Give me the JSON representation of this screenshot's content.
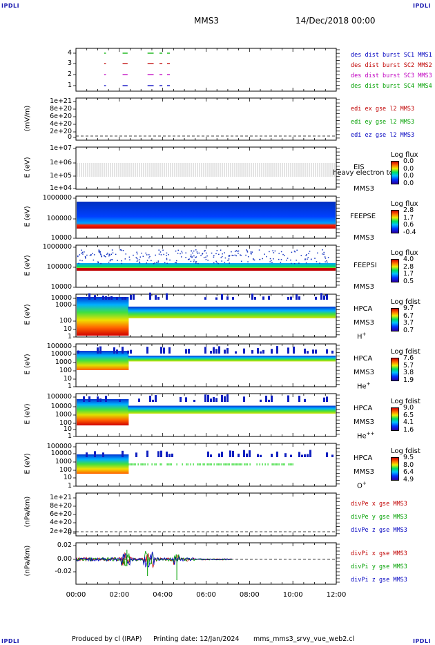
{
  "corners": {
    "tl": "IPDLI",
    "tr": "IPDLI",
    "bl": "IPDLI",
    "br": "IPDLI"
  },
  "header": {
    "title": "MMS3",
    "date": "14/Dec/2018 00:00"
  },
  "footer": {
    "produced_by": "Produced by cl (IRAP)",
    "printing_date": "Printing date: 12/Jan/2024",
    "file": "mms_mms3_srvy_vue_web2.cl"
  },
  "x_ticks": [
    "00:00",
    "02:00",
    "04:00",
    "06:00",
    "08:00",
    "10:00",
    "12:00"
  ],
  "chart_data": [
    {
      "type": "scatter",
      "id": "burst",
      "yticks": [
        "4",
        "3",
        "2",
        "1"
      ],
      "legend": [
        {
          "text": "des dist burst SC1 MMS1",
          "color": "#0000c0"
        },
        {
          "text": "des dist burst SC2 MMS2",
          "color": "#c00000"
        },
        {
          "text": "des dist burst SC3 MMS3",
          "color": "#c000c0"
        },
        {
          "text": "des dist burst SC4 MMS4",
          "color": "#00a000"
        }
      ],
      "series": [
        {
          "level": 4,
          "color": "#00b000",
          "x_hours": [
            [
              1.3,
              1.35
            ],
            [
              2.15,
              2.35
            ],
            [
              3.3,
              3.55
            ],
            [
              3.85,
              3.95
            ],
            [
              4.2,
              4.3
            ]
          ]
        },
        {
          "level": 3,
          "color": "#c00000",
          "x_hours": [
            [
              1.3,
              1.35
            ],
            [
              2.15,
              2.35
            ],
            [
              3.3,
              3.55
            ],
            [
              3.85,
              3.95
            ],
            [
              4.2,
              4.3
            ]
          ]
        },
        {
          "level": 2,
          "color": "#c000c0",
          "x_hours": [
            [
              1.3,
              1.35
            ],
            [
              2.15,
              2.35
            ],
            [
              3.3,
              3.55
            ],
            [
              3.85,
              3.95
            ],
            [
              4.2,
              4.3
            ]
          ]
        },
        {
          "level": 1,
          "color": "#0000c0",
          "x_hours": [
            [
              1.3,
              1.35
            ],
            [
              2.15,
              2.35
            ],
            [
              3.3,
              3.55
            ],
            [
              3.85,
              3.95
            ],
            [
              4.2,
              4.3
            ]
          ]
        }
      ]
    },
    {
      "type": "line",
      "id": "edi",
      "ylabel": "(mV/m)",
      "yticks": [
        "1e+21",
        "8e+20",
        "6e+20",
        "4e+20",
        "2e+20",
        "0"
      ],
      "legend": [
        {
          "text": "edi ex gse l2 MMS3",
          "color": "#c00000"
        },
        {
          "text": "edi ey gse l2 MMS3",
          "color": "#00a000"
        },
        {
          "text": "edi ez gse l2 MMS3",
          "color": "#0000c0"
        }
      ]
    },
    {
      "type": "heatmap",
      "id": "eis",
      "ylabel": "E (eV)",
      "yticks": [
        "1e+07",
        "1e+06",
        "1e+05",
        "1e+04"
      ],
      "inst": [
        "EIS",
        "MMS3"
      ],
      "overlay": "heavy electron to",
      "cb_title": "Log flux",
      "cb_ticks": [
        "0.0",
        "0.0",
        "0.0",
        "0.0"
      ]
    },
    {
      "type": "heatmap",
      "id": "feepse",
      "ylabel": "E (eV)",
      "yticks": [
        "1000000",
        "100000",
        "10000"
      ],
      "inst": [
        "FEEPSE",
        "MMS3"
      ],
      "cb_title": "Log flux",
      "cb_ticks": [
        "2.8",
        "1.7",
        "0.6",
        "-0.4"
      ]
    },
    {
      "type": "heatmap",
      "id": "feepsi",
      "ylabel": "E (eV)",
      "yticks": [
        "1000000",
        "100000",
        "10000"
      ],
      "inst": [
        "FEEPSI",
        "MMS3"
      ],
      "cb_title": "Log flux",
      "cb_ticks": [
        "4.0",
        "2.8",
        "1.7",
        "0.5"
      ]
    },
    {
      "type": "heatmap",
      "id": "hpca_h",
      "ylabel": "E (eV)",
      "yticks": [
        "10000",
        "1000",
        "100",
        "10",
        "1"
      ],
      "inst": [
        "HPCA",
        "MMS3"
      ],
      "species": "H",
      "species_sup": "+",
      "cb_title": "Log fdist",
      "cb_ticks": [
        "9.7",
        "6.7",
        "3.7",
        "0.7"
      ]
    },
    {
      "type": "heatmap",
      "id": "hpca_he",
      "ylabel": "E (eV)",
      "yticks": [
        "100000",
        "10000",
        "1000",
        "100",
        "10",
        "1"
      ],
      "inst": [
        "HPCA",
        "MMS3"
      ],
      "species": "He",
      "species_sup": "+",
      "cb_title": "Log fdist",
      "cb_ticks": [
        "7.6",
        "5.7",
        "3.8",
        "1.9"
      ]
    },
    {
      "type": "heatmap",
      "id": "hpca_hepp",
      "ylabel": "E (eV)",
      "yticks": [
        "100000",
        "10000",
        "1000",
        "100",
        "10",
        "1"
      ],
      "inst": [
        "HPCA",
        "MMS3"
      ],
      "species": "He",
      "species_sup": "++",
      "cb_title": "Log fdist",
      "cb_ticks": [
        "9.0",
        "6.5",
        "4.1",
        "1.6"
      ]
    },
    {
      "type": "heatmap",
      "id": "hpca_o",
      "ylabel": "E (eV)",
      "yticks": [
        "100000",
        "10000",
        "1000",
        "100",
        "10",
        "1"
      ],
      "inst": [
        "HPCA",
        "MMS3"
      ],
      "species": "O",
      "species_sup": "+",
      "cb_title": "Log fdist",
      "cb_ticks": [
        "9.5",
        "8.0",
        "6.4",
        "4.9"
      ]
    },
    {
      "type": "line",
      "id": "divpe",
      "ylabel": "(nPa/km)",
      "yticks": [
        "1e+21",
        "8e+20",
        "6e+20",
        "4e+20",
        "2e+20",
        "0"
      ],
      "legend": [
        {
          "text": "divPe x gse MMS3",
          "color": "#c00000"
        },
        {
          "text": "divPe y gse MMS3",
          "color": "#00a000"
        },
        {
          "text": "divPe z gse MMS3",
          "color": "#0000c0"
        }
      ]
    },
    {
      "type": "line",
      "id": "divpi",
      "ylabel": "(nPa/km)",
      "yticks": [
        "0.02",
        "0.00",
        "-0.02"
      ],
      "legend": [
        {
          "text": "divPi x gse MMS3",
          "color": "#c00000"
        },
        {
          "text": "divPi y gse MMS3",
          "color": "#00a000"
        },
        {
          "text": "divPi z gse MMS3",
          "color": "#0000c0"
        }
      ]
    }
  ]
}
